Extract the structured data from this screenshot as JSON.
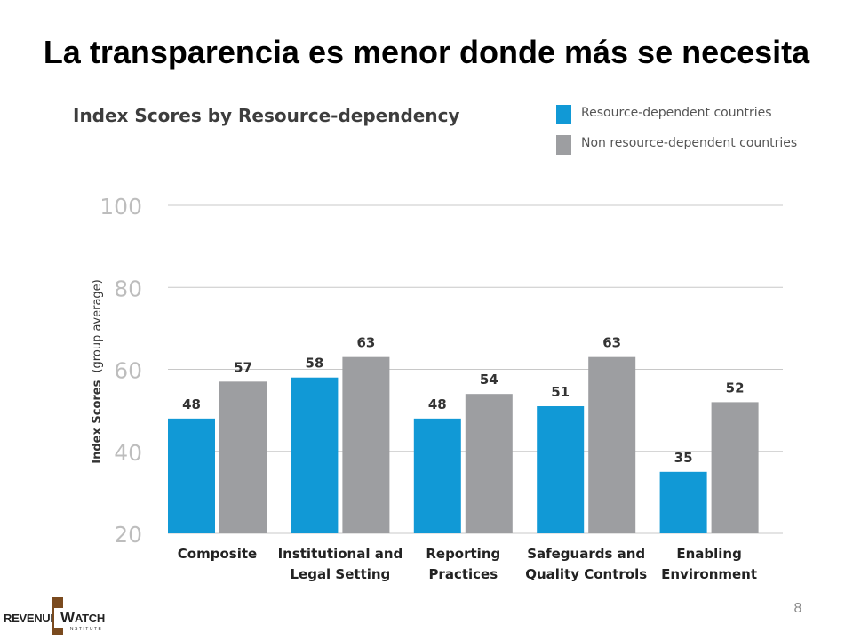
{
  "slide": {
    "title": "La transparencia es menor donde más se necesita",
    "page_number": "8"
  },
  "logo": {
    "text_left": "REVENUE",
    "mark_letter": "W",
    "text_right": "ATCH",
    "subtitle": "INSTITUTE",
    "colors": {
      "mark": "#7a4a1e"
    }
  },
  "chart_data": {
    "type": "bar",
    "title": "Index Scores by Resource-dependency",
    "ylabel_bold": "Index Scores",
    "ylabel_rest": "(group average)",
    "xlabel": "",
    "ylim": [
      20,
      100
    ],
    "yticks": [
      20,
      40,
      60,
      80,
      100
    ],
    "grid": true,
    "legend_position": "top-right",
    "categories": [
      [
        "Composite"
      ],
      [
        "Institutional and",
        "Legal Setting"
      ],
      [
        "Reporting",
        "Practices"
      ],
      [
        "Safeguards and",
        "Quality Controls"
      ],
      [
        "Enabling",
        "Environment"
      ]
    ],
    "series": [
      {
        "name": "Resource-dependent countries",
        "color": "#1199d6",
        "values": [
          48,
          58,
          48,
          51,
          35
        ]
      },
      {
        "name": "Non resource-dependent countries",
        "color": "#9d9ea1",
        "values": [
          57,
          63,
          54,
          63,
          52
        ]
      }
    ]
  }
}
